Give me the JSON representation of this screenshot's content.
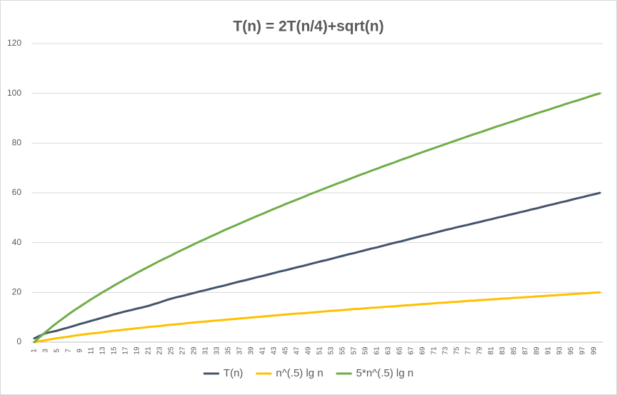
{
  "chart_data": {
    "type": "line",
    "title": "T(n) = 2T(n/4)+sqrt(n)",
    "categories": [
      1,
      null,
      3,
      null,
      5,
      null,
      7,
      null,
      9,
      null,
      11,
      null,
      13,
      null,
      15,
      null,
      17,
      null,
      19,
      null,
      21,
      null,
      23,
      null,
      25,
      null,
      27,
      null,
      29,
      null,
      31,
      null,
      33,
      null,
      35,
      null,
      37,
      null,
      39,
      null,
      41,
      null,
      43,
      null,
      45,
      null,
      47,
      null,
      49,
      null,
      51,
      null,
      53,
      null,
      55,
      null,
      57,
      null,
      59,
      null,
      61,
      null,
      63,
      null,
      65,
      null,
      67,
      null,
      69,
      null,
      71,
      null,
      73,
      null,
      75,
      null,
      77,
      null,
      79,
      null,
      81,
      null,
      83,
      null,
      85,
      null,
      87,
      null,
      89,
      null,
      91,
      null,
      93,
      null,
      95,
      null,
      97,
      null,
      99,
      null
    ],
    "series": [
      {
        "name": "T(n)",
        "color": "#44546a",
        "values": [
          1.5,
          2.6,
          3.6,
          4.1,
          4.6,
          5.3,
          5.9,
          6.6,
          7.3,
          7.9,
          8.6,
          9.2,
          9.9,
          10.5,
          11.2,
          11.8,
          12.4,
          12.9,
          13.5,
          14.0,
          14.6,
          15.3,
          16.0,
          16.8,
          17.5,
          18.1,
          18.6,
          19.2,
          19.8,
          20.4,
          20.9,
          21.5,
          22.1,
          22.6,
          23.2,
          23.8,
          24.4,
          24.9,
          25.5,
          26.1,
          26.6,
          27.2,
          27.8,
          28.4,
          28.9,
          29.5,
          30.1,
          30.6,
          31.2,
          31.8,
          32.4,
          32.9,
          33.5,
          34.1,
          34.7,
          35.3,
          35.8,
          36.4,
          37.0,
          37.6,
          38.1,
          38.7,
          39.3,
          39.9,
          40.4,
          41.0,
          41.6,
          42.2,
          42.8,
          43.3,
          43.9,
          44.5,
          45.1,
          45.6,
          46.2,
          46.7,
          47.2,
          47.8,
          48.3,
          48.9,
          49.4,
          50.0,
          50.5,
          51.1,
          51.6,
          52.2,
          52.7,
          53.3,
          53.8,
          54.4,
          55.0,
          55.5,
          56.1,
          56.6,
          57.2,
          57.8,
          58.3,
          58.9,
          59.4,
          60.0
        ]
      },
      {
        "name": "n^(.5) lg n",
        "color": "#ffc000",
        "values": [
          0,
          0.4,
          0.8,
          1.2,
          1.6,
          1.9,
          2.2,
          2.6,
          2.9,
          3.2,
          3.5,
          3.7,
          4.0,
          4.3,
          4.6,
          4.8,
          5.1,
          5.3,
          5.6,
          5.8,
          6.1,
          6.3,
          6.5,
          6.8,
          7.0,
          7.2,
          7.4,
          7.7,
          7.9,
          8.1,
          8.3,
          8.5,
          8.7,
          8.9,
          9.1,
          9.3,
          9.5,
          9.7,
          9.9,
          10.1,
          10.3,
          10.5,
          10.7,
          10.9,
          11.1,
          11.3,
          11.5,
          11.6,
          11.8,
          12.0,
          12.2,
          12.4,
          12.6,
          12.7,
          12.9,
          13.1,
          13.3,
          13.4,
          13.6,
          13.8,
          13.9,
          14.1,
          14.3,
          14.4,
          14.6,
          14.8,
          14.9,
          15.1,
          15.3,
          15.4,
          15.6,
          15.8,
          15.9,
          16.1,
          16.2,
          16.4,
          16.6,
          16.7,
          16.9,
          17.0,
          17.2,
          17.3,
          17.5,
          17.6,
          17.8,
          17.9,
          18.1,
          18.2,
          18.4,
          18.5,
          18.7,
          18.8,
          19.0,
          19.1,
          19.3,
          19.4,
          19.6,
          19.7,
          19.9,
          20.0
        ]
      },
      {
        "name": "5*n^(.5) lg n",
        "color": "#70ad47",
        "values": [
          0,
          2.1,
          4.1,
          6.0,
          7.8,
          9.5,
          11.2,
          12.8,
          14.3,
          15.8,
          17.3,
          18.7,
          20.1,
          21.4,
          22.8,
          24.1,
          25.4,
          26.6,
          27.9,
          29.1,
          30.3,
          31.5,
          32.7,
          33.8,
          34.9,
          36.1,
          37.2,
          38.3,
          39.4,
          40.5,
          41.5,
          42.6,
          43.6,
          44.7,
          45.7,
          46.7,
          47.7,
          48.7,
          49.7,
          50.7,
          51.6,
          52.6,
          53.6,
          54.5,
          55.5,
          56.4,
          57.3,
          58.2,
          59.2,
          60.1,
          61.0,
          61.9,
          62.8,
          63.7,
          64.5,
          65.4,
          66.3,
          67.2,
          68.0,
          68.9,
          69.7,
          70.6,
          71.4,
          72.2,
          73.1,
          73.9,
          74.7,
          75.6,
          76.4,
          77.2,
          78.0,
          78.8,
          79.6,
          80.4,
          81.2,
          82.0,
          82.8,
          83.6,
          84.3,
          85.1,
          85.9,
          86.7,
          87.4,
          88.2,
          88.9,
          89.7,
          90.5,
          91.2,
          92.0,
          92.7,
          93.4,
          94.2,
          94.9,
          95.7,
          96.4,
          97.1,
          97.8,
          98.6,
          99.3,
          100
        ]
      }
    ],
    "ylim": [
      0,
      120
    ],
    "yticks": [
      0,
      20,
      40,
      60,
      80,
      100,
      120
    ],
    "grid": true,
    "legend": "bottom"
  }
}
